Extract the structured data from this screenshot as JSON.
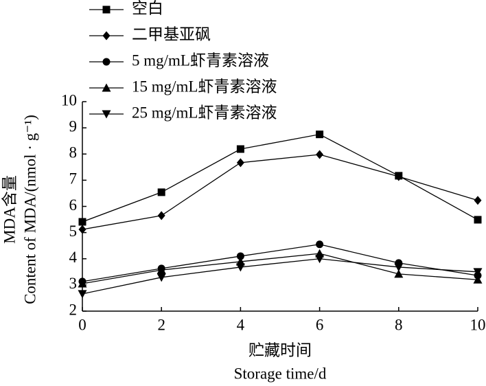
{
  "chart_data": {
    "type": "line",
    "x_label": "贮藏时间",
    "x_label_en": "Storage time/d",
    "y_label": "MDA含量",
    "y_label_en": "Content of MDA/(nmol · g⁻¹)",
    "x": [
      0,
      2,
      4,
      6,
      8,
      10
    ],
    "xlim": [
      0,
      10
    ],
    "xticks": [
      0,
      2,
      4,
      6,
      8,
      10
    ],
    "ylim": [
      2,
      10
    ],
    "yticks": [
      2,
      3,
      4,
      5,
      6,
      7,
      8,
      9,
      10
    ],
    "legend": "upper left",
    "series": [
      {
        "name": "空白",
        "color": "#000000",
        "marker": "square",
        "values": [
          5.41,
          6.54,
          8.19,
          8.75,
          7.17,
          5.49
        ]
      },
      {
        "name": "二甲基亚砜",
        "color": "#000000",
        "marker": "diamond",
        "values": [
          5.12,
          5.65,
          7.67,
          7.98,
          7.14,
          6.23
        ]
      },
      {
        "name": "5 mg/mL虾青素溶液",
        "color": "#000000",
        "marker": "circle",
        "values": [
          3.13,
          3.63,
          4.1,
          4.55,
          3.84,
          3.36
        ]
      },
      {
        "name": "15 mg/mL虾青素溶液",
        "color": "#000000",
        "marker": "triangle",
        "values": [
          3.05,
          3.57,
          3.89,
          4.2,
          3.42,
          3.2
        ]
      },
      {
        "name": "25 mg/mL虾青素溶液",
        "color": "#000000",
        "marker": "triangle-down",
        "values": [
          2.66,
          3.29,
          3.68,
          4.0,
          3.68,
          3.5
        ]
      }
    ]
  }
}
